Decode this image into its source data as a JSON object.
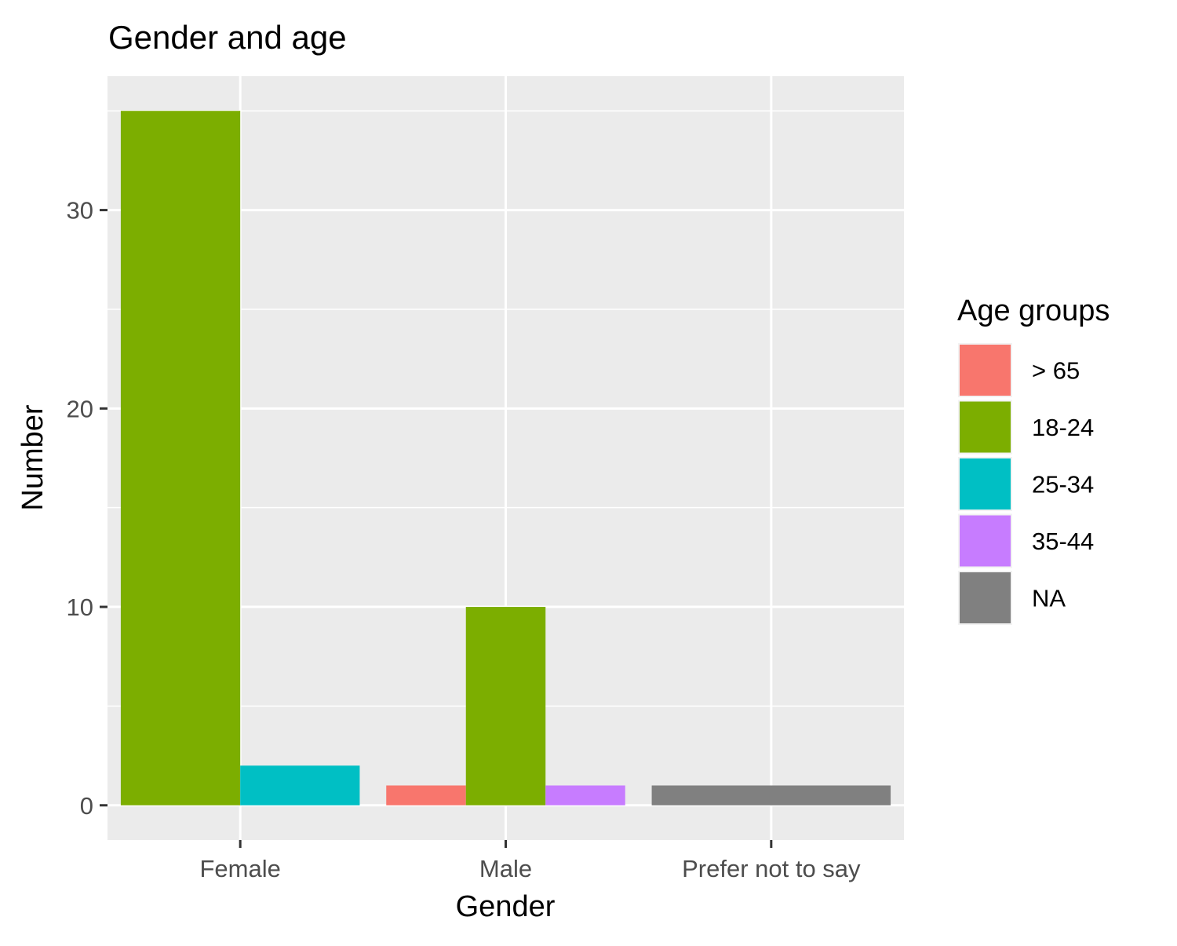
{
  "chart_data": {
    "type": "bar",
    "title": "Gender and age",
    "xlabel": "Gender",
    "ylabel": "Number",
    "categories": [
      "Female",
      "Male",
      "Prefer not to say"
    ],
    "yticks": [
      0,
      10,
      20,
      30
    ],
    "ylim": [
      -1.75,
      36.75
    ],
    "grid": true,
    "legend": {
      "title": "Age groups",
      "placement": "right",
      "entries": [
        {
          "label": "> 65",
          "color": "#F8766D"
        },
        {
          "label": "18-24",
          "color": "#7CAE00"
        },
        {
          "label": "25-34",
          "color": "#00BFC4"
        },
        {
          "label": "35-44",
          "color": "#C77CFF"
        },
        {
          "label": "NA",
          "color": "#808080"
        }
      ]
    },
    "bars": [
      {
        "category": "Female",
        "group": "18-24",
        "value": 35
      },
      {
        "category": "Female",
        "group": "25-34",
        "value": 2
      },
      {
        "category": "Male",
        "group": "> 65",
        "value": 1
      },
      {
        "category": "Male",
        "group": "18-24",
        "value": 10
      },
      {
        "category": "Male",
        "group": "35-44",
        "value": 1
      },
      {
        "category": "Prefer not to say",
        "group": "NA",
        "value": 1
      }
    ]
  },
  "colors": {
    "panel_background": "#EBEBEB",
    "grid_major": "#FFFFFF",
    "grid_minor": "#F5F5F5",
    "tick_text": "#4D4D4D"
  }
}
